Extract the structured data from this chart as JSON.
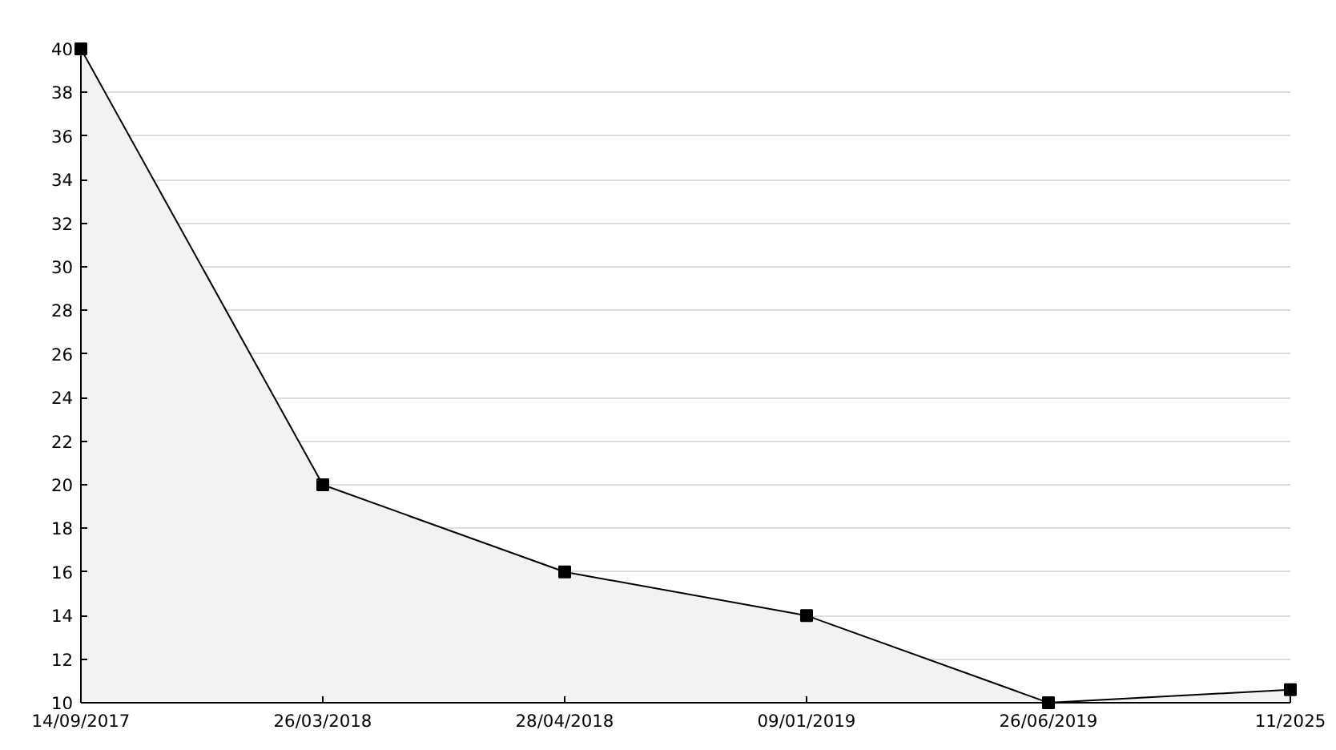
{
  "chart_data": {
    "type": "area",
    "categories": [
      "14/09/2017",
      "26/03/2018",
      "28/04/2018",
      "09/01/2019",
      "26/06/2019",
      "11/2025"
    ],
    "series": [
      {
        "color": "#000000",
        "values": [
          40,
          20,
          16,
          14,
          10,
          10.6
        ]
      }
    ],
    "ylim": [
      10,
      40
    ],
    "yticks": [
      10,
      12,
      14,
      16,
      18,
      20,
      22,
      24,
      26,
      28,
      30,
      32,
      34,
      36,
      38,
      40
    ],
    "grid": "y",
    "marker": "square",
    "line_style": "solid"
  }
}
